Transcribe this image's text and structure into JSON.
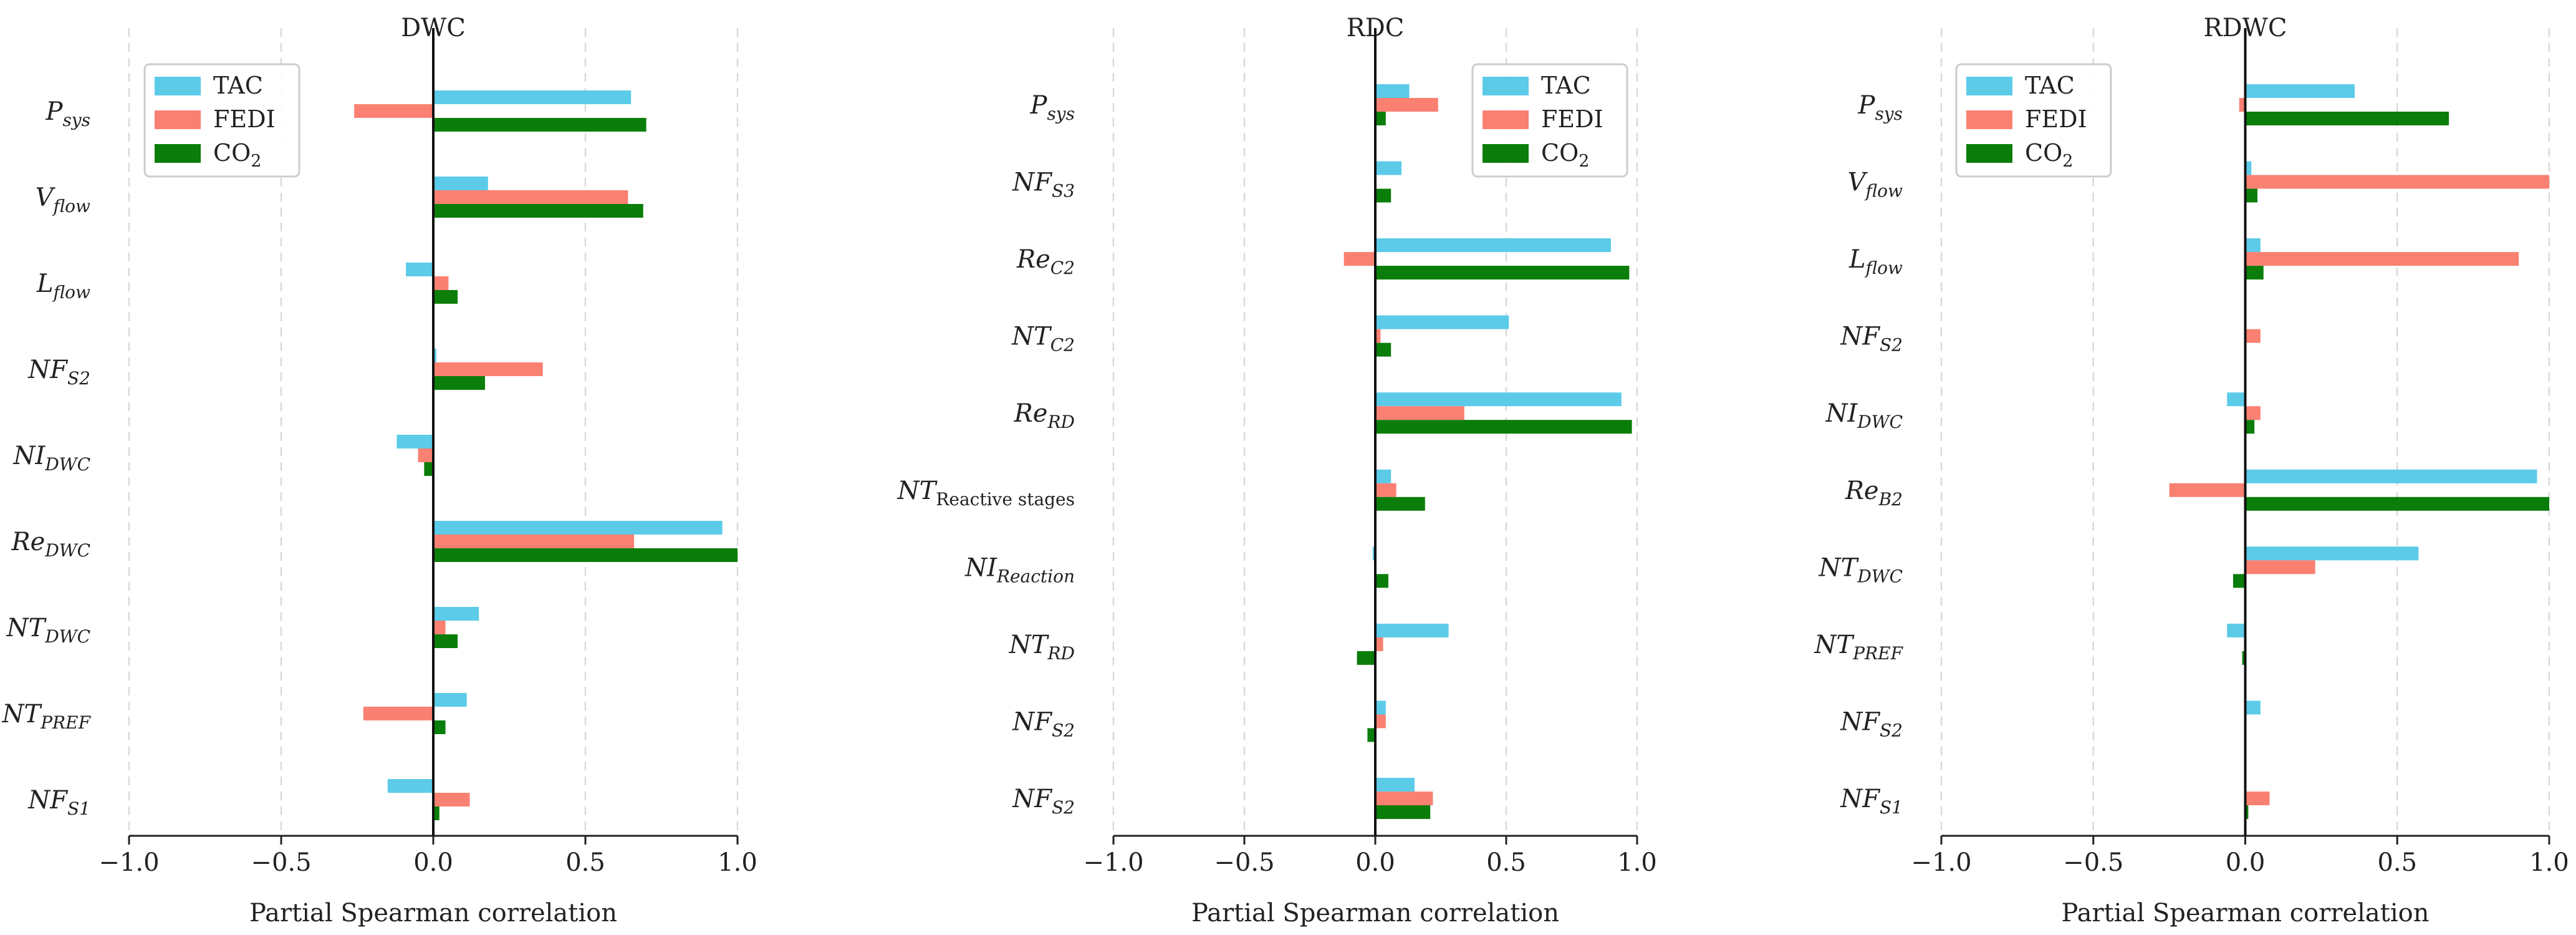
{
  "colors": {
    "TAC": "#5bcbe8",
    "FEDI": "#fa8072",
    "CO2": "#0a7d0a"
  },
  "chart_data": [
    {
      "type": "bar",
      "orientation": "horizontal",
      "title": "DWC",
      "xlabel": "Partial Spearman correlation",
      "xlim": [
        -1.0,
        1.0
      ],
      "xticks": [
        "−1.0",
        "−0.5",
        "0.0",
        "0.5",
        "1.0"
      ],
      "grid": true,
      "legend_position": "top-left",
      "legend": [
        {
          "key": "TAC",
          "main": "TAC",
          "sub": ""
        },
        {
          "key": "FEDI",
          "main": "FEDI",
          "sub": ""
        },
        {
          "key": "CO2",
          "main": "CO",
          "sub": "2"
        }
      ],
      "categories": [
        {
          "main": "P",
          "sub": "sys"
        },
        {
          "main": "V",
          "sub": "flow"
        },
        {
          "main": "L",
          "sub": "flow"
        },
        {
          "main": "NF",
          "sub": "S2"
        },
        {
          "main": "NI",
          "sub": "DWC"
        },
        {
          "main": "Re",
          "sub": "DWC"
        },
        {
          "main": "NT",
          "sub": "DWC"
        },
        {
          "main": "NT",
          "sub": "PREF"
        },
        {
          "main": "NF",
          "sub": "S1"
        }
      ],
      "series": [
        {
          "name": "TAC",
          "values": [
            0.65,
            0.18,
            -0.09,
            0.01,
            -0.12,
            0.95,
            0.15,
            0.11,
            -0.15
          ]
        },
        {
          "name": "FEDI",
          "values": [
            -0.26,
            0.64,
            0.05,
            0.36,
            -0.05,
            0.66,
            0.04,
            -0.23,
            0.12
          ]
        },
        {
          "name": "CO2",
          "values": [
            0.7,
            0.69,
            0.08,
            0.17,
            -0.03,
            1.0,
            0.08,
            0.04,
            0.02
          ]
        }
      ]
    },
    {
      "type": "bar",
      "orientation": "horizontal",
      "title": "RDC",
      "xlabel": "Partial Spearman correlation",
      "xlim": [
        -1.0,
        1.0
      ],
      "xticks": [
        "−1.0",
        "−0.5",
        "0.0",
        "0.5",
        "1.0"
      ],
      "grid": true,
      "legend_position": "top-right",
      "legend": [
        {
          "key": "TAC",
          "main": "TAC",
          "sub": ""
        },
        {
          "key": "FEDI",
          "main": "FEDI",
          "sub": ""
        },
        {
          "key": "CO2",
          "main": "CO",
          "sub": "2"
        }
      ],
      "categories": [
        {
          "main": "P",
          "sub": "sys"
        },
        {
          "main": "NF",
          "sub": "S3"
        },
        {
          "main": "Re",
          "sub": "C2"
        },
        {
          "main": "NT",
          "sub": "C2"
        },
        {
          "main": "Re",
          "sub": "RD"
        },
        {
          "main": "NT",
          "sub": "Reactive stages",
          "sub_upright": true
        },
        {
          "main": "NI",
          "sub": "Reaction"
        },
        {
          "main": "NT",
          "sub": "RD"
        },
        {
          "main": "NF",
          "sub": "S2"
        },
        {
          "main": "NF",
          "sub": "S2"
        }
      ],
      "series": [
        {
          "name": "TAC",
          "values": [
            0.13,
            0.1,
            0.9,
            0.51,
            0.94,
            0.06,
            -0.01,
            0.28,
            0.04,
            0.15
          ]
        },
        {
          "name": "FEDI",
          "values": [
            0.24,
            0.0,
            -0.12,
            0.02,
            0.34,
            0.08,
            0.0,
            0.03,
            0.04,
            0.22
          ]
        },
        {
          "name": "CO2",
          "values": [
            0.04,
            0.06,
            0.97,
            0.06,
            0.98,
            0.19,
            0.05,
            -0.07,
            -0.03,
            0.21
          ]
        }
      ]
    },
    {
      "type": "bar",
      "orientation": "horizontal",
      "title": "RDWC",
      "xlabel": "Partial Spearman correlation",
      "xlim": [
        -1.0,
        1.0
      ],
      "xticks": [
        "−1.0",
        "−0.5",
        "0.0",
        "0.5",
        "1.0"
      ],
      "grid": true,
      "legend_position": "top-left",
      "legend": [
        {
          "key": "TAC",
          "main": "TAC",
          "sub": ""
        },
        {
          "key": "FEDI",
          "main": "FEDI",
          "sub": ""
        },
        {
          "key": "CO2",
          "main": "CO",
          "sub": "2"
        }
      ],
      "categories": [
        {
          "main": "P",
          "sub": "sys"
        },
        {
          "main": "V",
          "sub": "flow"
        },
        {
          "main": "L",
          "sub": "flow"
        },
        {
          "main": "NF",
          "sub": "S2"
        },
        {
          "main": "NI",
          "sub": "DWC"
        },
        {
          "main": "Re",
          "sub": "B2"
        },
        {
          "main": "NT",
          "sub": "DWC"
        },
        {
          "main": "NT",
          "sub": "PREF"
        },
        {
          "main": "NF",
          "sub": "S2"
        },
        {
          "main": "NF",
          "sub": "S1"
        }
      ],
      "series": [
        {
          "name": "TAC",
          "values": [
            0.36,
            0.02,
            0.05,
            0.0,
            -0.06,
            0.96,
            0.57,
            -0.06,
            0.05,
            0.0
          ]
        },
        {
          "name": "FEDI",
          "values": [
            -0.02,
            1.0,
            0.9,
            0.05,
            0.05,
            -0.25,
            0.23,
            0.0,
            0.0,
            0.08
          ]
        },
        {
          "name": "CO2",
          "values": [
            0.67,
            0.04,
            0.06,
            0.0,
            0.03,
            1.0,
            -0.04,
            -0.01,
            0.0,
            0.01
          ]
        }
      ]
    }
  ]
}
